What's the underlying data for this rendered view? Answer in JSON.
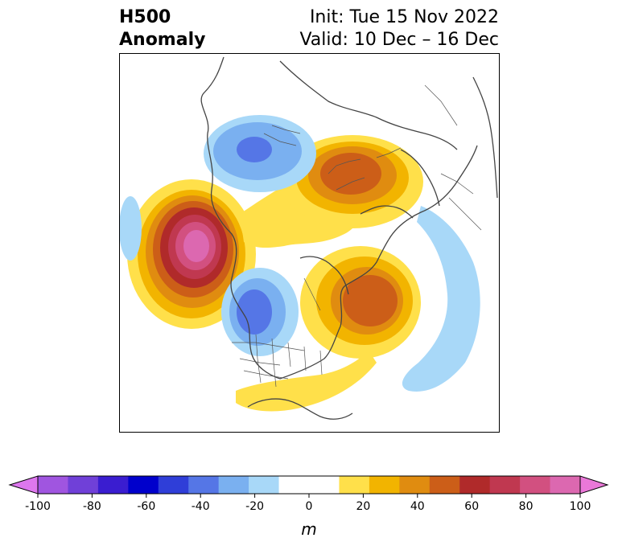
{
  "title": {
    "left_line1": "H500",
    "left_line2": "Anomaly",
    "init": "Init: Tue 15 Nov 2022",
    "valid": "Valid: 10 Dec – 16 Dec"
  },
  "colorbar": {
    "unit": "m",
    "ticks": [
      "-100",
      "-80",
      "-60",
      "-40",
      "-20",
      "0",
      "20",
      "40",
      "60",
      "80",
      "100"
    ],
    "extend": "both",
    "colors": [
      "#dd77ee",
      "#a055e0",
      "#7040d8",
      "#3a1dd0",
      "#0000cc",
      "#2f3ed8",
      "#5576e6",
      "#7ab0f0",
      "#a8d8f8",
      "#ffffff",
      "#ffffff",
      "#ffe04a",
      "#f2b400",
      "#e08c10",
      "#cc5e18",
      "#b02a2a",
      "#c03850",
      "#d25080",
      "#dc68b0",
      "#ea78d8"
    ]
  },
  "map": {
    "projection": "north-polar-stereographic",
    "features": [
      "coastlines",
      "country-borders",
      "state-borders"
    ],
    "anomaly_centers": [
      {
        "region": "Gulf of Alaska / NE Pacific",
        "sign": "positive",
        "approx_m": 90
      },
      {
        "region": "Eastern Canada / Hudson Bay",
        "sign": "positive",
        "approx_m": 50
      },
      {
        "region": "Northern Siberia",
        "sign": "positive",
        "approx_m": 50
      },
      {
        "region": "Pacific Northwest / W Canada",
        "sign": "negative",
        "approx_m": -40
      },
      {
        "region": "Western Russia / Scandinavia",
        "sign": "negative",
        "approx_m": -40
      },
      {
        "region": "North Atlantic",
        "sign": "negative",
        "approx_m": -15
      }
    ]
  }
}
